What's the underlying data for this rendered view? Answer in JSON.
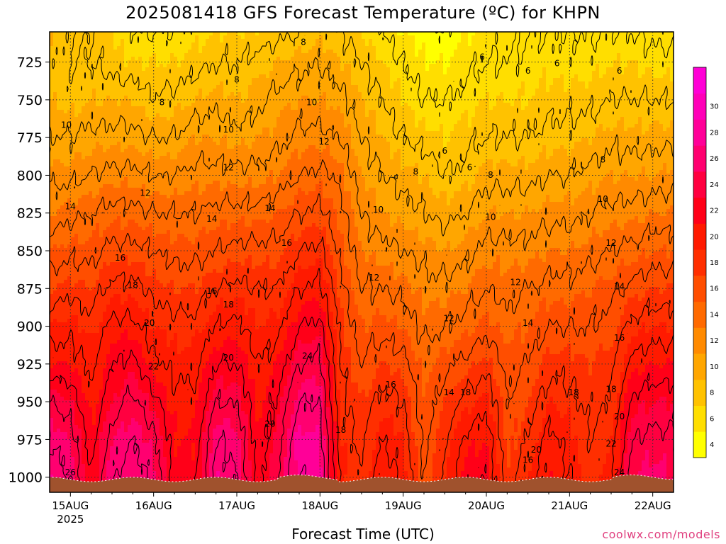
{
  "chart_data": {
    "type": "heatmap",
    "title": "2025081418 GFS Forecast Temperature (ºC) for KHPN",
    "xlabel": "Forecast Time (UTC)",
    "ylabel": "",
    "source": "coolwx.com/models",
    "x_ticks": [
      "15AUG",
      "16AUG",
      "17AUG",
      "18AUG",
      "19AUG",
      "20AUG",
      "21AUG",
      "22AUG"
    ],
    "x_year": "2025",
    "x_range_days": [
      14.75,
      22.25
    ],
    "y_ticks": [
      725,
      750,
      775,
      800,
      825,
      850,
      875,
      900,
      925,
      950,
      975,
      1000
    ],
    "y_range_hPa": [
      705,
      1010
    ],
    "y_inverted": true,
    "grid": true,
    "colorbar": {
      "ticks": [
        4,
        6,
        8,
        10,
        12,
        14,
        16,
        18,
        20,
        22,
        24,
        26,
        28,
        30
      ],
      "levels": [
        3,
        5,
        7,
        9,
        11,
        13,
        15,
        17,
        19,
        21,
        23,
        25,
        27,
        29,
        31,
        33
      ],
      "colors": [
        "#ffff00",
        "#ffde00",
        "#ffc200",
        "#ffa600",
        "#ff8a00",
        "#ff6a00",
        "#ff4e00",
        "#ff2f00",
        "#ff1a00",
        "#ff0018",
        "#ff0040",
        "#ff0070",
        "#ff0098",
        "#ff00b8",
        "#ff00d6"
      ],
      "placement": "right"
    },
    "ground_color": "#a0522d",
    "profiles": [
      {
        "day": 14.75,
        "temps": [
          9,
          8.5,
          9,
          10,
          11.5,
          13,
          15,
          17,
          19,
          21,
          24,
          26,
          27
        ]
      },
      {
        "day": 15.0,
        "temps": [
          8,
          8,
          8.5,
          10,
          11.5,
          13.5,
          15.5,
          17.5,
          19.5,
          21,
          23,
          25,
          26
        ]
      },
      {
        "day": 15.25,
        "temps": [
          8,
          8,
          9,
          10.5,
          12,
          14,
          15.5,
          17,
          18.5,
          19.5,
          20.5,
          21,
          22
        ]
      },
      {
        "day": 15.5,
        "temps": [
          7,
          7.5,
          9,
          10.5,
          12.5,
          14.5,
          16.5,
          18.5,
          20.5,
          22,
          23,
          25,
          26
        ]
      },
      {
        "day": 15.75,
        "temps": [
          6,
          7,
          9,
          10.5,
          12.5,
          14.5,
          16.5,
          18.5,
          20.5,
          22.5,
          24.5,
          26,
          27
        ]
      },
      {
        "day": 16.0,
        "temps": [
          6,
          7,
          8,
          10,
          12,
          14,
          16,
          17.5,
          19,
          20.5,
          22.5,
          24.5,
          25.5
        ]
      },
      {
        "day": 16.25,
        "temps": [
          6,
          7,
          8.5,
          10,
          12,
          14,
          15.5,
          17,
          18.5,
          19.5,
          20.5,
          21,
          21.5
        ]
      },
      {
        "day": 16.5,
        "temps": [
          6.5,
          7.5,
          9,
          11,
          12.5,
          14,
          15.5,
          17,
          18.5,
          19.5,
          20.5,
          21,
          21.5
        ]
      },
      {
        "day": 16.75,
        "temps": [
          7,
          8,
          9.5,
          11,
          12.5,
          14.5,
          16,
          18,
          20,
          22,
          24,
          26,
          27
        ]
      },
      {
        "day": 17.0,
        "temps": [
          7,
          8,
          9,
          10.5,
          12.5,
          14.5,
          16.5,
          18.5,
          20.5,
          22,
          24,
          25.5,
          26
        ]
      },
      {
        "day": 17.25,
        "temps": [
          7,
          8.5,
          9.5,
          11,
          12.5,
          14.5,
          16.5,
          18,
          19,
          20,
          20.5,
          21,
          21.5
        ]
      },
      {
        "day": 17.5,
        "temps": [
          7.5,
          9,
          10.5,
          11.5,
          13,
          15,
          16.5,
          18,
          19.5,
          21,
          22.5,
          23.5,
          24
        ]
      },
      {
        "day": 17.75,
        "temps": [
          8,
          9.5,
          11,
          12.5,
          14,
          16,
          18,
          20,
          22,
          24,
          26,
          27.5,
          28
        ]
      },
      {
        "day": 18.0,
        "temps": [
          8.5,
          10,
          11,
          12.5,
          14.5,
          16.5,
          18.5,
          20.5,
          22.5,
          24.5,
          26,
          27,
          27.5
        ]
      },
      {
        "day": 18.25,
        "temps": [
          8,
          9,
          10.5,
          12,
          13.5,
          14.5,
          15.5,
          16.5,
          17.5,
          18,
          18.5,
          19,
          19.5
        ]
      },
      {
        "day": 18.5,
        "temps": [
          7,
          8,
          9,
          10,
          11,
          12,
          13,
          14,
          15,
          16,
          17,
          17.5,
          18
        ]
      },
      {
        "day": 18.75,
        "temps": [
          6,
          7,
          8,
          9,
          10,
          11,
          12.5,
          14,
          15.5,
          17,
          18.5,
          20,
          21
        ]
      },
      {
        "day": 19.0,
        "temps": [
          5,
          6,
          7,
          8,
          9.5,
          10.5,
          12,
          13.5,
          15,
          16.5,
          18,
          19,
          19.5
        ]
      },
      {
        "day": 19.25,
        "temps": [
          4.5,
          5,
          6,
          7.5,
          9,
          10,
          11.5,
          12.5,
          13.5,
          14.5,
          15,
          15.5,
          16
        ]
      },
      {
        "day": 19.5,
        "temps": [
          4,
          5,
          6,
          7,
          8,
          9.5,
          11,
          12.5,
          14,
          15.5,
          17,
          18,
          18.5
        ]
      },
      {
        "day": 19.75,
        "temps": [
          5,
          5.5,
          6.5,
          7.5,
          8.5,
          10,
          11.5,
          13,
          14.5,
          16.5,
          18.5,
          20.5,
          21.5
        ]
      },
      {
        "day": 20.0,
        "temps": [
          5.5,
          6,
          7,
          8,
          9.5,
          11,
          12.5,
          14,
          15.5,
          17.5,
          19.5,
          21,
          22
        ]
      },
      {
        "day": 20.25,
        "temps": [
          5.5,
          6,
          7,
          8,
          9.5,
          11,
          12.5,
          13.5,
          14.5,
          15.5,
          16,
          16.5,
          17
        ]
      },
      {
        "day": 20.5,
        "temps": [
          6,
          6.5,
          7,
          8,
          9.5,
          11,
          12.5,
          14,
          15,
          16,
          17,
          18,
          19
        ]
      },
      {
        "day": 20.75,
        "temps": [
          6,
          6.5,
          7.5,
          8.5,
          10,
          11.5,
          13,
          14.5,
          16,
          17.5,
          19,
          20.5,
          21
        ]
      },
      {
        "day": 21.0,
        "temps": [
          6,
          6.5,
          7.5,
          8.5,
          10,
          11.5,
          13,
          14.5,
          16,
          17.5,
          18.5,
          19.5,
          20
        ]
      },
      {
        "day": 21.25,
        "temps": [
          6,
          6.5,
          7.5,
          9,
          10.5,
          12,
          13.5,
          15,
          16,
          17,
          17.5,
          18,
          18.5
        ]
      },
      {
        "day": 21.5,
        "temps": [
          6,
          7,
          8,
          9.5,
          11,
          12.5,
          14,
          15.5,
          16.5,
          17.5,
          18,
          19,
          19.5
        ]
      },
      {
        "day": 21.75,
        "temps": [
          6,
          7,
          8,
          9.5,
          11,
          12.5,
          14.5,
          16.5,
          18.5,
          20.5,
          22.5,
          24,
          25
        ]
      },
      {
        "day": 22.0,
        "temps": [
          5.5,
          6.5,
          8,
          9.5,
          11,
          13,
          15,
          17,
          19,
          21,
          23,
          24.5,
          25.5
        ]
      },
      {
        "day": 22.25,
        "temps": [
          5.5,
          6.5,
          8,
          9.5,
          11.5,
          13,
          15,
          17,
          19,
          21,
          23,
          24.5,
          25
        ]
      }
    ],
    "profile_levels_hPa": [
      705,
      725,
      750,
      775,
      800,
      825,
      850,
      875,
      900,
      925,
      950,
      975,
      1000
    ],
    "labels": [
      {
        "text": "26",
        "day": 15.0,
        "p": 997
      },
      {
        "text": "22",
        "day": 16.0,
        "p": 927
      },
      {
        "text": "20",
        "day": 15.95,
        "p": 898
      },
      {
        "text": "18",
        "day": 15.75,
        "p": 873
      },
      {
        "text": "16",
        "day": 15.6,
        "p": 855
      },
      {
        "text": "14",
        "day": 15.0,
        "p": 821
      },
      {
        "text": "12",
        "day": 15.9,
        "p": 812
      },
      {
        "text": "10",
        "day": 14.95,
        "p": 767
      },
      {
        "text": "8",
        "day": 16.1,
        "p": 752
      },
      {
        "text": "20",
        "day": 16.9,
        "p": 921
      },
      {
        "text": "18",
        "day": 16.9,
        "p": 886
      },
      {
        "text": "16",
        "day": 16.7,
        "p": 877
      },
      {
        "text": "14",
        "day": 16.7,
        "p": 829
      },
      {
        "text": "12",
        "day": 16.9,
        "p": 795
      },
      {
        "text": "10",
        "day": 16.9,
        "p": 770
      },
      {
        "text": "8",
        "day": 17.0,
        "p": 737
      },
      {
        "text": "20",
        "day": 17.4,
        "p": 965
      },
      {
        "text": "16",
        "day": 17.6,
        "p": 845
      },
      {
        "text": "14",
        "day": 17.4,
        "p": 822
      },
      {
        "text": "24",
        "day": 17.85,
        "p": 920
      },
      {
        "text": "18",
        "day": 18.25,
        "p": 969
      },
      {
        "text": "12",
        "day": 18.05,
        "p": 778
      },
      {
        "text": "10",
        "day": 17.9,
        "p": 752
      },
      {
        "text": "8",
        "day": 17.8,
        "p": 712
      },
      {
        "text": "16",
        "day": 18.85,
        "p": 939
      },
      {
        "text": "12",
        "day": 18.65,
        "p": 868
      },
      {
        "text": "10",
        "day": 18.7,
        "p": 823
      },
      {
        "text": "8",
        "day": 19.15,
        "p": 798
      },
      {
        "text": "6",
        "day": 19.5,
        "p": 784
      },
      {
        "text": "6",
        "day": 19.8,
        "p": 795
      },
      {
        "text": "6",
        "day": 19.95,
        "p": 722
      },
      {
        "text": "14",
        "day": 19.55,
        "p": 944
      },
      {
        "text": "12",
        "day": 19.55,
        "p": 895
      },
      {
        "text": "18",
        "day": 19.75,
        "p": 944
      },
      {
        "text": "10",
        "day": 20.05,
        "p": 828
      },
      {
        "text": "8",
        "day": 20.05,
        "p": 800
      },
      {
        "text": "12",
        "day": 20.35,
        "p": 871
      },
      {
        "text": "14",
        "day": 20.5,
        "p": 898
      },
      {
        "text": "6",
        "day": 20.5,
        "p": 731
      },
      {
        "text": "6",
        "day": 20.85,
        "p": 726
      },
      {
        "text": "16",
        "day": 20.5,
        "p": 989
      },
      {
        "text": "20",
        "day": 20.6,
        "p": 982
      },
      {
        "text": "18",
        "day": 21.05,
        "p": 944
      },
      {
        "text": "8",
        "day": 21.4,
        "p": 790
      },
      {
        "text": "10",
        "day": 21.4,
        "p": 816
      },
      {
        "text": "12",
        "day": 21.5,
        "p": 845
      },
      {
        "text": "6",
        "day": 21.6,
        "p": 731
      },
      {
        "text": "14",
        "day": 21.6,
        "p": 874
      },
      {
        "text": "16",
        "day": 21.6,
        "p": 908
      },
      {
        "text": "18",
        "day": 21.5,
        "p": 942
      },
      {
        "text": "20",
        "day": 21.6,
        "p": 960
      },
      {
        "text": "22",
        "day": 21.5,
        "p": 978
      },
      {
        "text": "24",
        "day": 21.6,
        "p": 997
      }
    ]
  }
}
